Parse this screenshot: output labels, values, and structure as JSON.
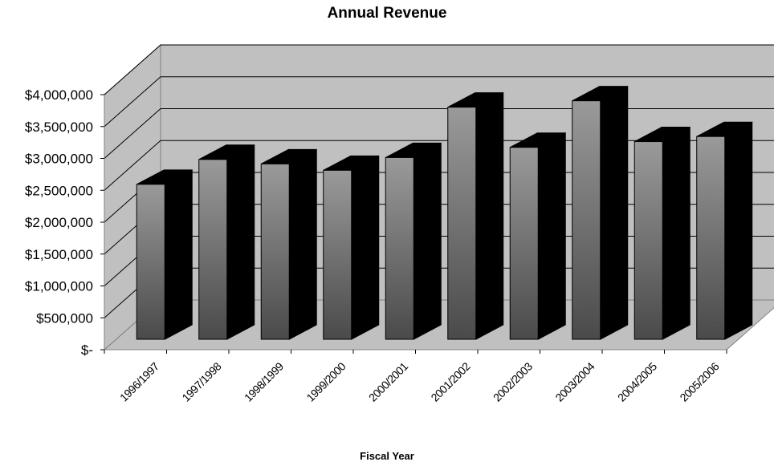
{
  "chart_data": {
    "type": "bar",
    "title": "Annual Revenue",
    "xlabel": "Fiscal Year",
    "ylabel": "",
    "categories": [
      "1996/1997",
      "1997/1998",
      "1998/1999",
      "1999/2000",
      "2000/2001",
      "2001/2002",
      "2002/2003",
      "2003/2004",
      "2004/2005",
      "2005/2006"
    ],
    "series": [
      {
        "values": [
          2430000,
          2820000,
          2750000,
          2650000,
          2850000,
          3640000,
          3010000,
          3740000,
          3100000,
          3180000
        ]
      }
    ],
    "ylim": [
      0,
      4000000
    ],
    "y_ticks": [
      {
        "value": 0,
        "label": "$-"
      },
      {
        "value": 500000,
        "label": "$500,000"
      },
      {
        "value": 1000000,
        "label": "$1,000,000"
      },
      {
        "value": 1500000,
        "label": "$1,500,000"
      },
      {
        "value": 2000000,
        "label": "$2,000,000"
      },
      {
        "value": 2500000,
        "label": "$2,500,000"
      },
      {
        "value": 3000000,
        "label": "$3,000,000"
      },
      {
        "value": 3500000,
        "label": "$3,500,000"
      },
      {
        "value": 4000000,
        "label": "$4,000,000"
      }
    ],
    "grid": true,
    "three_d": true,
    "legend": "none",
    "colors": {
      "wall": "#c0c0c0",
      "floor": "#c0c0c0",
      "bar_top": "#9a9a9a",
      "bar_bottom": "#4a4a4a",
      "bar_side": "#000000"
    }
  }
}
